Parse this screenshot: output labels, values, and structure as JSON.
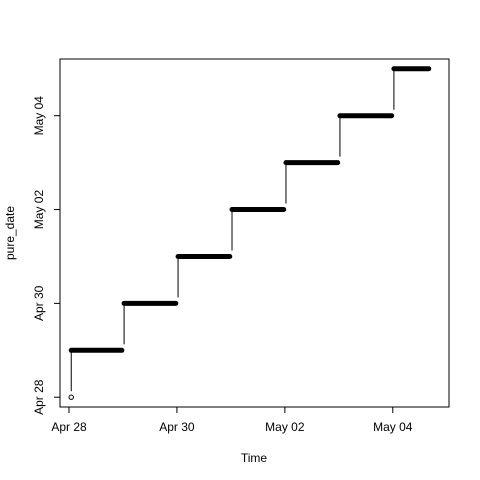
{
  "chart_data": {
    "type": "line",
    "title": "",
    "xlabel": "Time",
    "ylabel": "pure_date",
    "x_ticks": [
      {
        "label": "Apr 28",
        "value": "2016-04-28"
      },
      {
        "label": "Apr 30",
        "value": "2016-04-30"
      },
      {
        "label": "May 02",
        "value": "2016-05-02"
      },
      {
        "label": "May 04",
        "value": "2016-05-04"
      }
    ],
    "y_ticks": [
      {
        "label": "Apr 28",
        "value": "2016-04-28"
      },
      {
        "label": "Apr 30",
        "value": "2016-04-30"
      },
      {
        "label": "May 02",
        "value": "2016-05-02"
      },
      {
        "label": "May 04",
        "value": "2016-05-04"
      }
    ],
    "xlim": [
      "2016-04-27 20:00",
      "2016-05-05 01:00"
    ],
    "ylim": [
      "2016-04-27 19:00",
      "2016-05-05 05:00"
    ],
    "initial_point": {
      "x": "2016-04-28 01:00",
      "y": "2016-04-28"
    },
    "steps": [
      {
        "y": "2016-04-29",
        "x_start": "2016-04-28 01:00",
        "x_end": "2016-04-28 23:30"
      },
      {
        "y": "2016-04-30",
        "x_start": "2016-04-29 00:30",
        "x_end": "2016-04-29 23:30"
      },
      {
        "y": "2016-05-01",
        "x_start": "2016-04-30 00:30",
        "x_end": "2016-04-30 23:30"
      },
      {
        "y": "2016-05-02",
        "x_start": "2016-05-01 00:30",
        "x_end": "2016-05-01 23:30"
      },
      {
        "y": "2016-05-03",
        "x_start": "2016-05-02 00:30",
        "x_end": "2016-05-02 23:30"
      },
      {
        "y": "2016-05-04",
        "x_start": "2016-05-03 00:30",
        "x_end": "2016-05-03 23:30"
      },
      {
        "y": "2016-05-05",
        "x_start": "2016-05-04 00:30",
        "x_end": "2016-05-04 16:00"
      }
    ]
  }
}
